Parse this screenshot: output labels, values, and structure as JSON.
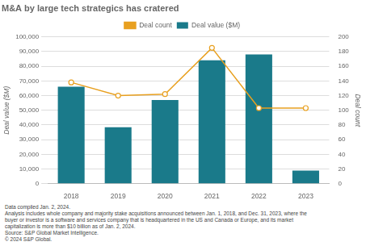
{
  "chart_data": {
    "type": "bar",
    "title": "M&A by large tech strategics has cratered",
    "categories": [
      "2018",
      "2019",
      "2020",
      "2021",
      "2022",
      "2023"
    ],
    "series": [
      {
        "name": "Deal value ($M)",
        "type": "bar",
        "color": "#1a7a8a",
        "values": [
          66000,
          38500,
          57000,
          84000,
          88000,
          9000
        ]
      },
      {
        "name": "Deal count",
        "type": "line",
        "axis": "y2",
        "color": "#e8a020",
        "marker": "circle",
        "values": [
          138,
          120,
          122,
          185,
          103,
          103
        ]
      }
    ],
    "ylabel": "Deal value ($M)",
    "y2label": "Deal count",
    "ylim": [
      0,
      100000
    ],
    "yticks": [
      0,
      {
        "value": 10000,
        "label": "10,000"
      },
      {
        "value": 20000,
        "label": "20,000"
      },
      {
        "value": 30000,
        "label": "30,000"
      },
      {
        "value": 40000,
        "label": "40,000"
      },
      {
        "value": 50000,
        "label": "50,000"
      },
      {
        "value": 60000,
        "label": "60,000"
      },
      {
        "value": 70000,
        "label": "70,000"
      },
      {
        "value": 80000,
        "label": "80,000"
      },
      {
        "value": 90000,
        "label": "90,000"
      },
      {
        "value": 100000,
        "label": "100,000"
      }
    ],
    "y2lim": [
      0,
      200
    ],
    "y2ticks": [
      0,
      20,
      40,
      60,
      80,
      100,
      120,
      140,
      160,
      180,
      200
    ],
    "grid": true,
    "legend": "top",
    "annotations": [
      "Data compiled Jan. 2, 2024.",
      "Analysis includes whole company and majority stake acquisitions announced between Jan. 1, 2018, and Dec. 31, 2023, where the",
      "buyer or investor is a software and services company that is headquartered in the US and Canada or Europe, and its market",
      "capitalization is more than $10 billion as of Jan. 2, 2024.",
      "Source: S&P Global Market Intelligence.",
      "© 2024 S&P Global."
    ]
  }
}
